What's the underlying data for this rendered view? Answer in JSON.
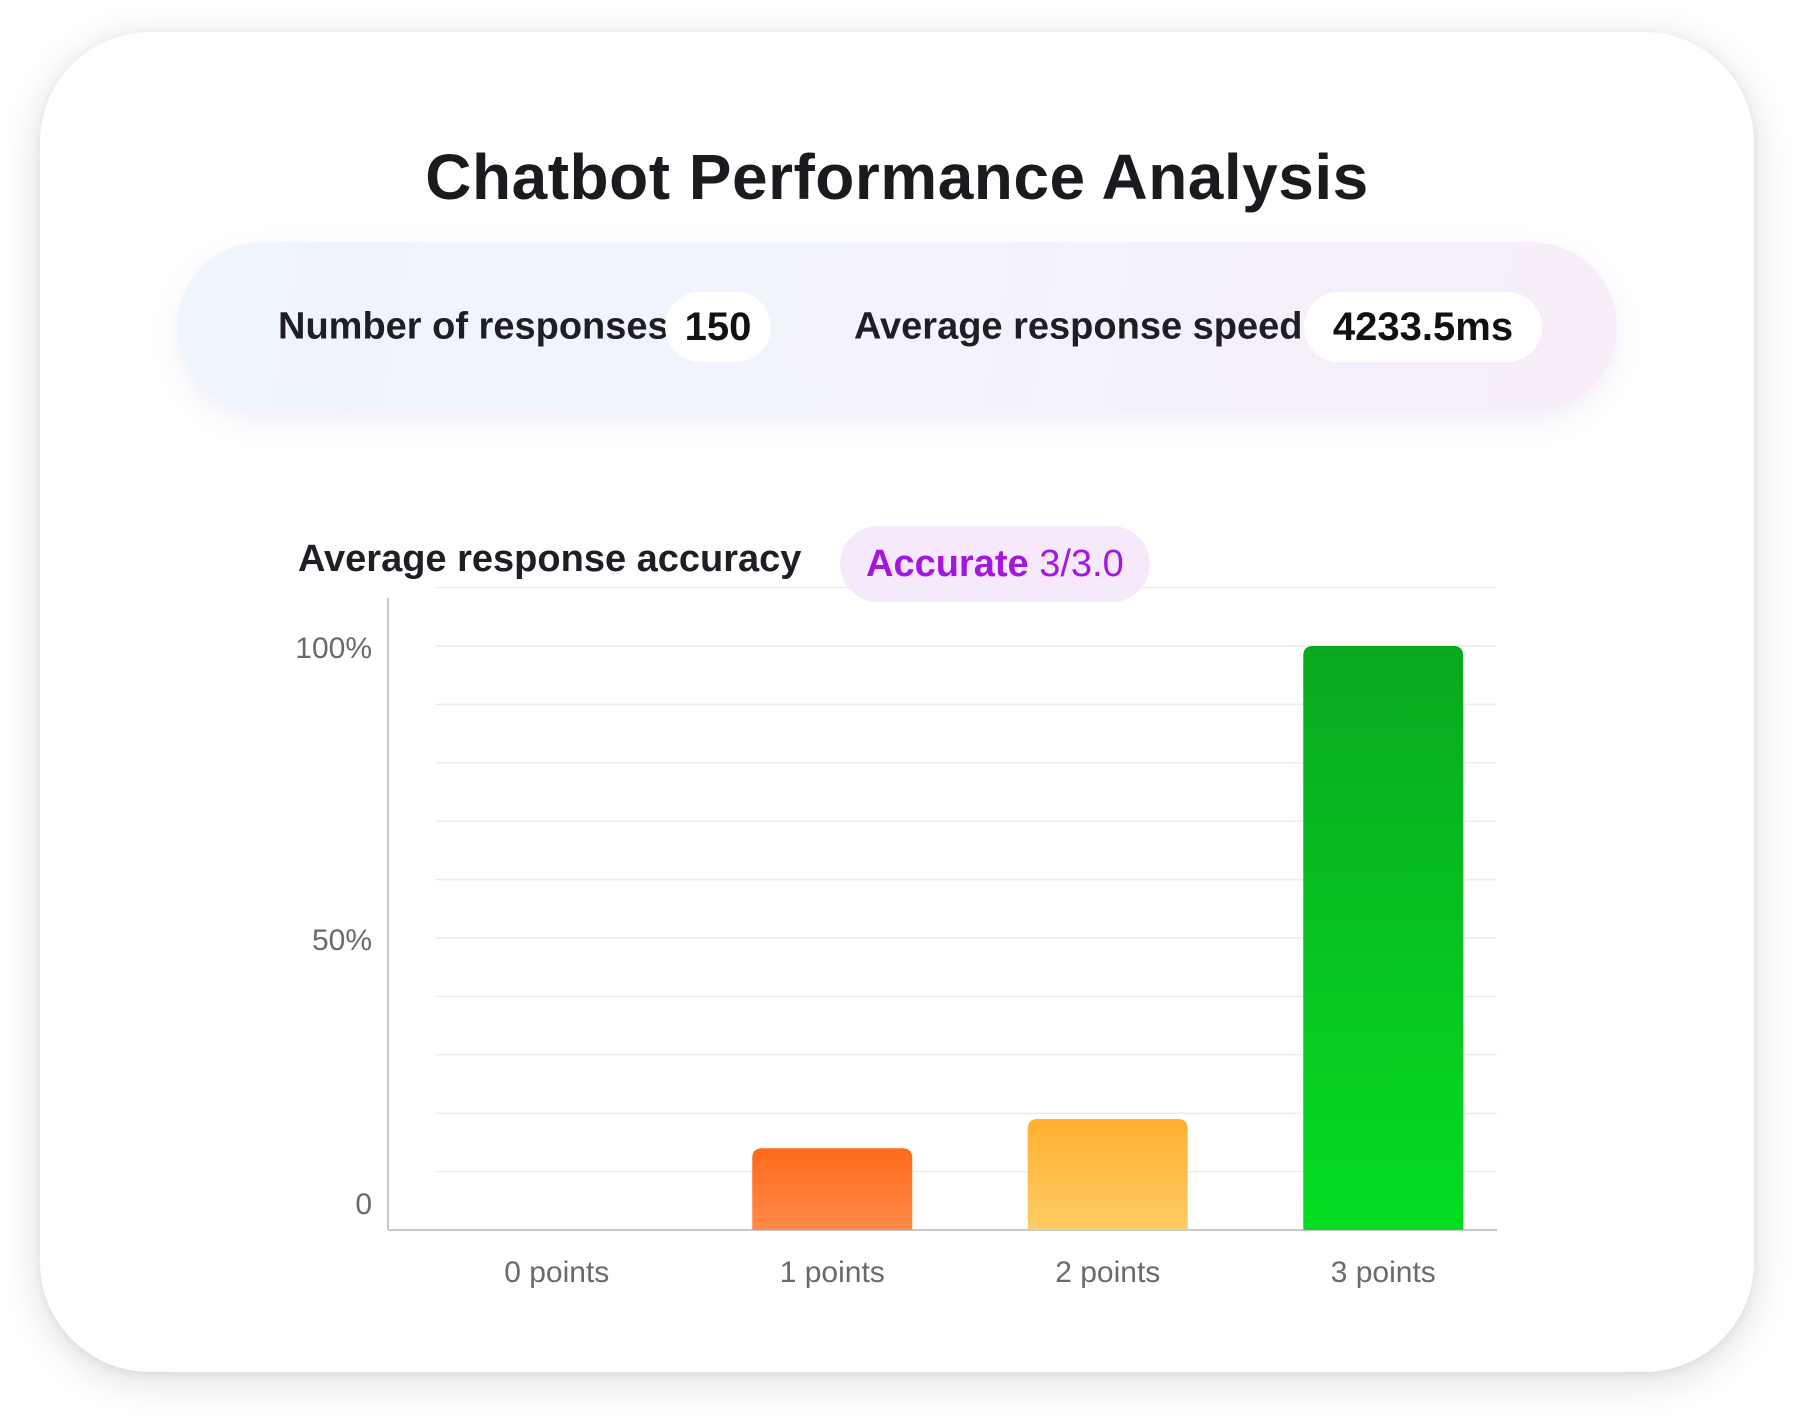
{
  "title": "Chatbot Performance Analysis",
  "stats": {
    "responses_label": "Number of responses",
    "responses_value": "150",
    "speed_label": "Average response speed",
    "speed_value": "4233.5ms"
  },
  "accuracy": {
    "label": "Average response accuracy",
    "rating": "Accurate",
    "score": "3/3.0",
    "color": "#a416e0"
  },
  "chart_data": {
    "type": "bar",
    "categories": [
      "0 points",
      "1 points",
      "2 points",
      "3 points"
    ],
    "values": [
      0,
      14,
      19,
      100
    ],
    "yticks": [
      "0",
      "50%",
      "100%"
    ],
    "ylim": [
      0,
      110
    ],
    "grid": true,
    "colors": [
      [
        "#ff8a4a",
        "#ff6a1a"
      ],
      [
        "#ff8a4a",
        "#ff6a1a"
      ],
      [
        "#ffcc66",
        "#ffb02e"
      ],
      [
        "#04dd22",
        "#0aa81f"
      ]
    ]
  }
}
